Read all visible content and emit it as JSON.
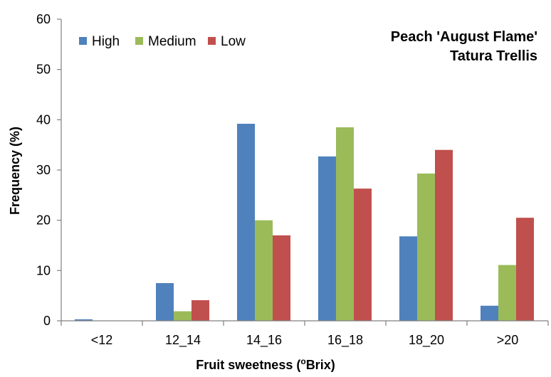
{
  "chart_data": {
    "type": "bar",
    "title_lines": [
      "Peach 'August Flame'",
      "Tatura Trellis"
    ],
    "xlabel": "Fruit sweetness (",
    "xlabel_sup": "o",
    "xlabel_end": "Brix)",
    "ylabel": "Frequency (%)",
    "ylim": [
      0,
      60
    ],
    "yticks": [
      0,
      10,
      20,
      30,
      40,
      50,
      60
    ],
    "grid": false,
    "legend_position": "top-left",
    "categories": [
      "<12",
      "12_14",
      "14_16",
      "16_18",
      "18_20",
      ">20"
    ],
    "series": [
      {
        "name": "High",
        "color": "#4F81BD",
        "values": [
          0.3,
          7.5,
          39.2,
          32.7,
          16.8,
          3.0
        ]
      },
      {
        "name": "Medium",
        "color": "#9BBB59",
        "values": [
          0,
          1.9,
          20.0,
          38.5,
          29.3,
          11.1
        ]
      },
      {
        "name": "Low",
        "color": "#C0504D",
        "values": [
          0,
          4.1,
          17.0,
          26.3,
          34.0,
          20.5
        ]
      }
    ]
  }
}
